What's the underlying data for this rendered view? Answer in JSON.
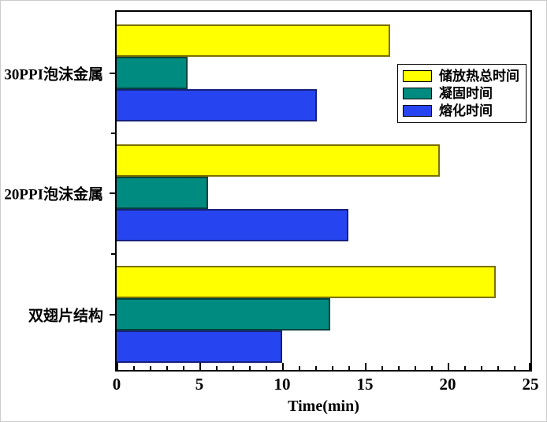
{
  "chart_data": {
    "type": "bar",
    "orientation": "horizontal",
    "title": "",
    "xlabel": "Time(min)",
    "ylabel": "",
    "xlim": [
      0,
      25
    ],
    "xticks": [
      0,
      5,
      10,
      15,
      20,
      25
    ],
    "minor_tick_step": 1,
    "grid": false,
    "legend_position": "upper-right-inside",
    "categories": [
      "30PPI泡沫金属",
      "20PPI泡沫金属",
      "双翅片结构"
    ],
    "series": [
      {
        "name": "储放热总时间",
        "color": "#ffff00",
        "border_color": "#7b7000",
        "values": [
          16.5,
          19.5,
          22.9
        ]
      },
      {
        "name": "凝固时间",
        "color": "#008b80",
        "border_color": "#00443e",
        "values": [
          4.3,
          5.5,
          12.9
        ]
      },
      {
        "name": "熔化时间",
        "color": "#2645f0",
        "border_color": "#18217e",
        "values": [
          12.1,
          14.0,
          10.0
        ]
      }
    ]
  }
}
